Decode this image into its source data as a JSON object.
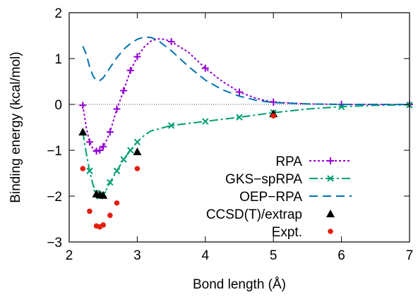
{
  "chart_data": {
    "type": "line",
    "xlabel": "Bond length (Å)",
    "ylabel": "Binding energy (kcal/mol)",
    "xlim": [
      2,
      7
    ],
    "ylim": [
      -3,
      2
    ],
    "xticks": [
      2,
      3,
      4,
      5,
      6,
      7
    ],
    "yticks": [
      -3,
      -2,
      -1,
      0,
      1,
      2
    ],
    "xtick_labels": [
      "2",
      "3",
      "4",
      "5",
      "6",
      "7"
    ],
    "ytick_labels": [
      "−3",
      "−2",
      "−1",
      "0",
      "1",
      "2"
    ],
    "zero_line": true,
    "grid": false,
    "legend_position": "bottom-right",
    "series": [
      {
        "name": "RPA",
        "color": "#9400D3",
        "style": "dotted",
        "marker": "plus",
        "curve": [
          [
            2.2,
            -0.02
          ],
          [
            2.25,
            -0.5
          ],
          [
            2.3,
            -0.82
          ],
          [
            2.35,
            -0.97
          ],
          [
            2.4,
            -1.02
          ],
          [
            2.45,
            -1.0
          ],
          [
            2.5,
            -0.92
          ],
          [
            2.55,
            -0.78
          ],
          [
            2.6,
            -0.6
          ],
          [
            2.7,
            -0.1
          ],
          [
            2.8,
            0.3
          ],
          [
            2.9,
            0.74
          ],
          [
            3.0,
            1.04
          ],
          [
            3.1,
            1.25
          ],
          [
            3.2,
            1.38
          ],
          [
            3.3,
            1.43
          ],
          [
            3.4,
            1.42
          ],
          [
            3.5,
            1.37
          ],
          [
            3.75,
            1.14
          ],
          [
            4.0,
            0.79
          ],
          [
            4.25,
            0.5
          ],
          [
            4.5,
            0.27
          ],
          [
            4.75,
            0.13
          ],
          [
            5.0,
            0.05
          ],
          [
            5.5,
            0.01
          ],
          [
            6.0,
            0.0
          ],
          [
            7.0,
            0.0
          ]
        ],
        "markers": [
          [
            2.2,
            -0.02
          ],
          [
            2.3,
            -0.82
          ],
          [
            2.4,
            -1.02
          ],
          [
            2.45,
            -1.0
          ],
          [
            2.5,
            -0.92
          ],
          [
            2.6,
            -0.6
          ],
          [
            2.7,
            -0.1
          ],
          [
            2.8,
            0.3
          ],
          [
            2.9,
            0.74
          ],
          [
            3.0,
            1.04
          ],
          [
            3.5,
            1.37
          ],
          [
            4.0,
            0.79
          ],
          [
            4.5,
            0.27
          ],
          [
            5.0,
            0.05
          ],
          [
            6.0,
            0.0
          ],
          [
            7.0,
            0.0
          ]
        ]
      },
      {
        "name": "GKS−spRPA",
        "color": "#009E73",
        "style": "dashdot",
        "marker": "cross",
        "curve": [
          [
            2.2,
            -0.6
          ],
          [
            2.25,
            -1.05
          ],
          [
            2.3,
            -1.45
          ],
          [
            2.35,
            -1.75
          ],
          [
            2.4,
            -1.93
          ],
          [
            2.45,
            -2.0
          ],
          [
            2.5,
            -1.96
          ],
          [
            2.55,
            -1.85
          ],
          [
            2.6,
            -1.7
          ],
          [
            2.7,
            -1.45
          ],
          [
            2.8,
            -1.2
          ],
          [
            2.9,
            -1.0
          ],
          [
            3.0,
            -0.82
          ],
          [
            3.1,
            -0.68
          ],
          [
            3.2,
            -0.58
          ],
          [
            3.5,
            -0.46
          ],
          [
            4.0,
            -0.37
          ],
          [
            4.5,
            -0.28
          ],
          [
            5.0,
            -0.18
          ],
          [
            5.5,
            -0.1
          ],
          [
            6.0,
            -0.05
          ],
          [
            6.5,
            -0.02
          ],
          [
            7.0,
            -0.01
          ]
        ],
        "markers": [
          [
            2.3,
            -1.45
          ],
          [
            2.4,
            -1.93
          ],
          [
            2.45,
            -2.0
          ],
          [
            2.5,
            -1.96
          ],
          [
            2.6,
            -1.7
          ],
          [
            2.7,
            -1.45
          ],
          [
            2.8,
            -1.2
          ],
          [
            2.9,
            -1.0
          ],
          [
            3.0,
            -0.82
          ],
          [
            3.5,
            -0.46
          ],
          [
            4.0,
            -0.37
          ],
          [
            4.5,
            -0.28
          ],
          [
            5.0,
            -0.18
          ],
          [
            6.0,
            -0.05
          ],
          [
            7.0,
            -0.01
          ]
        ]
      },
      {
        "name": "OEP−RPA",
        "color": "#0072B2",
        "style": "dashed",
        "marker": "none",
        "curve": [
          [
            2.2,
            1.27
          ],
          [
            2.25,
            1.1
          ],
          [
            2.3,
            0.82
          ],
          [
            2.35,
            0.62
          ],
          [
            2.4,
            0.52
          ],
          [
            2.45,
            0.52
          ],
          [
            2.5,
            0.58
          ],
          [
            2.6,
            0.8
          ],
          [
            2.7,
            1.02
          ],
          [
            2.8,
            1.2
          ],
          [
            2.9,
            1.33
          ],
          [
            3.0,
            1.42
          ],
          [
            3.1,
            1.47
          ],
          [
            3.2,
            1.46
          ],
          [
            3.3,
            1.4
          ],
          [
            3.5,
            1.17
          ],
          [
            3.75,
            0.83
          ],
          [
            4.0,
            0.53
          ],
          [
            4.25,
            0.32
          ],
          [
            4.5,
            0.18
          ],
          [
            4.75,
            0.09
          ],
          [
            5.0,
            0.04
          ],
          [
            5.5,
            0.01
          ],
          [
            6.0,
            0.0
          ],
          [
            7.0,
            0.0
          ]
        ],
        "markers": []
      },
      {
        "name": "CCSD(T)/extrap",
        "color": "#000000",
        "style": "points",
        "marker": "triangle",
        "curve": [],
        "markers": [
          [
            2.2,
            -0.6
          ],
          [
            2.4,
            -1.95
          ],
          [
            2.45,
            -1.97
          ],
          [
            2.5,
            -1.98
          ],
          [
            3.0,
            -1.03
          ],
          [
            5.0,
            -0.2
          ]
        ]
      },
      {
        "name": "Expt.",
        "color": "#E51E10",
        "style": "points",
        "marker": "circle",
        "curve": [],
        "markers": [
          [
            2.2,
            -1.4
          ],
          [
            2.3,
            -2.33
          ],
          [
            2.4,
            -2.65
          ],
          [
            2.45,
            -2.67
          ],
          [
            2.5,
            -2.63
          ],
          [
            2.6,
            -2.42
          ],
          [
            2.7,
            -2.15
          ],
          [
            3.0,
            -1.4
          ],
          [
            5.0,
            -0.25
          ]
        ]
      }
    ]
  }
}
